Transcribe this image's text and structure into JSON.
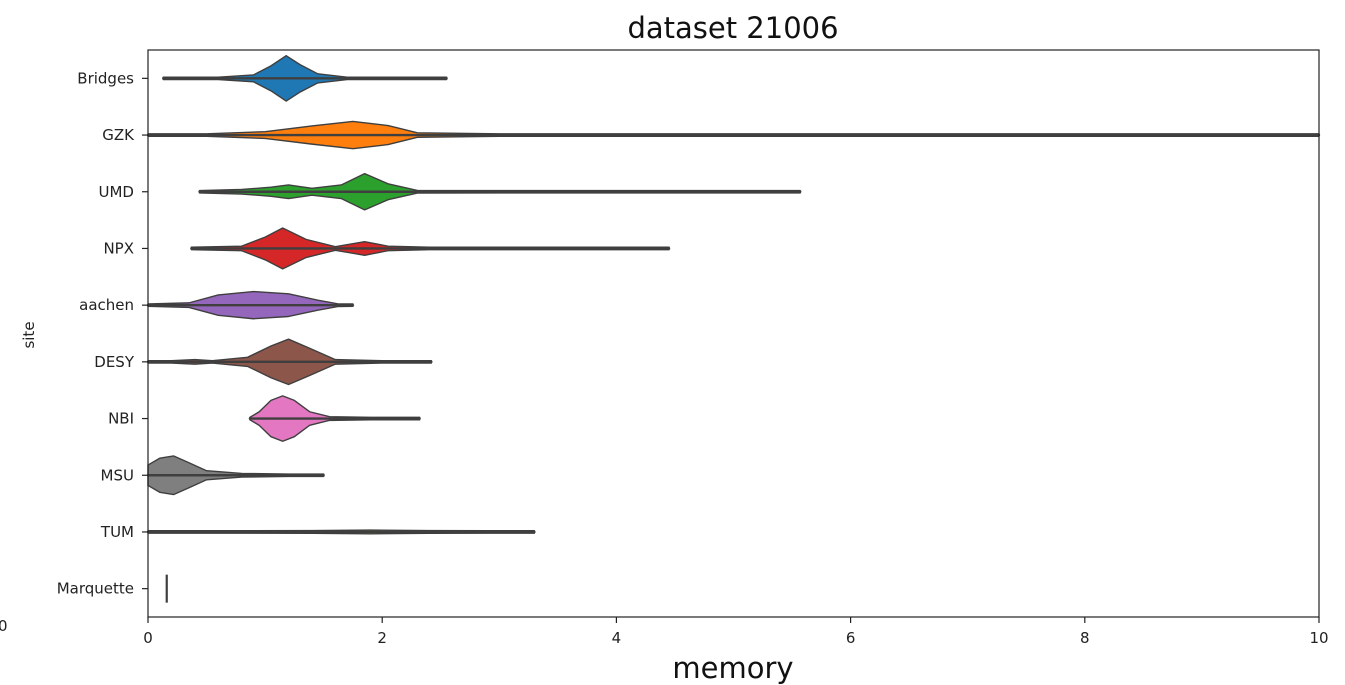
{
  "chart_data": {
    "type": "violin",
    "title": "dataset 21006",
    "xlabel": "memory",
    "ylabel": "site",
    "xlim": [
      0,
      10
    ],
    "x_ticks": [
      "0",
      "2",
      "4",
      "6",
      "8",
      "10"
    ],
    "stray_label": "0",
    "grid": false,
    "categories": [
      "Bridges",
      "GZK",
      "UMD",
      "NPX",
      "aachen",
      "DESY",
      "NBI",
      "MSU",
      "TUM",
      "Marquette"
    ],
    "series": [
      {
        "category": "Bridges",
        "color": "#1f77b4",
        "min": 0.13,
        "max": 2.55,
        "density": [
          [
            0.13,
            0.01
          ],
          [
            0.6,
            0.03
          ],
          [
            0.9,
            0.15
          ],
          [
            1.05,
            0.55
          ],
          [
            1.18,
            1.0
          ],
          [
            1.3,
            0.6
          ],
          [
            1.45,
            0.2
          ],
          [
            1.7,
            0.05
          ],
          [
            2.2,
            0.02
          ],
          [
            2.55,
            0.01
          ]
        ]
      },
      {
        "category": "GZK",
        "color": "#ff7f0e",
        "min": 0.0,
        "max": 10.0,
        "density": [
          [
            0.0,
            0.02
          ],
          [
            0.5,
            0.05
          ],
          [
            1.0,
            0.15
          ],
          [
            1.4,
            0.4
          ],
          [
            1.75,
            0.6
          ],
          [
            2.05,
            0.42
          ],
          [
            2.3,
            0.1
          ],
          [
            3.0,
            0.03
          ],
          [
            10.0,
            0.03
          ]
        ]
      },
      {
        "category": "UMD",
        "color": "#2ca02c",
        "min": 0.44,
        "max": 5.57,
        "density": [
          [
            0.44,
            0.01
          ],
          [
            0.8,
            0.1
          ],
          [
            1.05,
            0.2
          ],
          [
            1.2,
            0.3
          ],
          [
            1.4,
            0.15
          ],
          [
            1.65,
            0.3
          ],
          [
            1.85,
            0.8
          ],
          [
            2.05,
            0.35
          ],
          [
            2.3,
            0.06
          ],
          [
            3.0,
            0.02
          ],
          [
            5.57,
            0.01
          ]
        ]
      },
      {
        "category": "NPX",
        "color": "#d62728",
        "min": 0.37,
        "max": 4.45,
        "density": [
          [
            0.37,
            0.01
          ],
          [
            0.8,
            0.1
          ],
          [
            1.0,
            0.5
          ],
          [
            1.15,
            0.9
          ],
          [
            1.35,
            0.4
          ],
          [
            1.6,
            0.08
          ],
          [
            1.85,
            0.3
          ],
          [
            2.05,
            0.1
          ],
          [
            2.4,
            0.03
          ],
          [
            3.2,
            0.02
          ],
          [
            4.45,
            0.01
          ]
        ]
      },
      {
        "category": "aachen",
        "color": "#9467bd",
        "min": 0.0,
        "max": 1.75,
        "density": [
          [
            0.0,
            0.02
          ],
          [
            0.35,
            0.1
          ],
          [
            0.6,
            0.45
          ],
          [
            0.9,
            0.6
          ],
          [
            1.2,
            0.5
          ],
          [
            1.45,
            0.22
          ],
          [
            1.62,
            0.06
          ],
          [
            1.75,
            0.01
          ]
        ]
      },
      {
        "category": "DESY",
        "color": "#8c564b",
        "min": 0.0,
        "max": 2.42,
        "density": [
          [
            0.0,
            0.02
          ],
          [
            0.2,
            0.04
          ],
          [
            0.4,
            0.1
          ],
          [
            0.55,
            0.04
          ],
          [
            0.85,
            0.2
          ],
          [
            1.05,
            0.7
          ],
          [
            1.2,
            1.0
          ],
          [
            1.38,
            0.6
          ],
          [
            1.6,
            0.1
          ],
          [
            2.0,
            0.03
          ],
          [
            2.42,
            0.01
          ]
        ]
      },
      {
        "category": "NBI",
        "color": "#e377c2",
        "min": 0.87,
        "max": 2.32,
        "density": [
          [
            0.87,
            0.02
          ],
          [
            0.95,
            0.3
          ],
          [
            1.05,
            0.8
          ],
          [
            1.15,
            1.0
          ],
          [
            1.25,
            0.8
          ],
          [
            1.38,
            0.3
          ],
          [
            1.55,
            0.08
          ],
          [
            1.9,
            0.04
          ],
          [
            2.32,
            0.01
          ]
        ]
      },
      {
        "category": "MSU",
        "color": "#7f7f7f",
        "min": 0.0,
        "max": 1.5,
        "density": [
          [
            0.0,
            0.45
          ],
          [
            0.1,
            0.75
          ],
          [
            0.22,
            0.85
          ],
          [
            0.35,
            0.55
          ],
          [
            0.5,
            0.2
          ],
          [
            0.8,
            0.08
          ],
          [
            1.2,
            0.04
          ],
          [
            1.5,
            0.01
          ]
        ]
      },
      {
        "category": "TUM",
        "color": "#bcbd22",
        "min": 0.0,
        "max": 3.3,
        "density": [
          [
            0.0,
            0.01
          ],
          [
            0.8,
            0.02
          ],
          [
            1.4,
            0.06
          ],
          [
            1.9,
            0.08
          ],
          [
            2.4,
            0.06
          ],
          [
            2.9,
            0.03
          ],
          [
            3.3,
            0.01
          ]
        ]
      },
      {
        "category": "Marquette",
        "color": "#17becf",
        "min": 0.16,
        "max": 0.16,
        "density": []
      }
    ]
  }
}
